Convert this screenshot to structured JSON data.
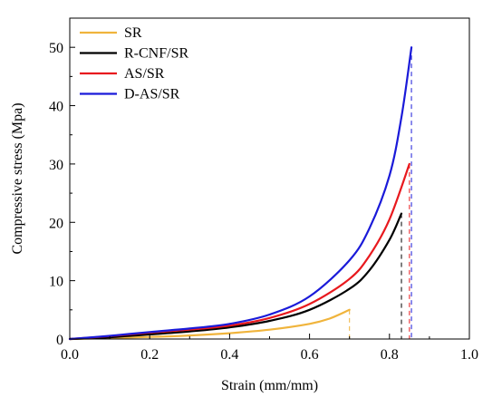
{
  "chart_data": {
    "type": "line",
    "title": "",
    "xlabel": "Strain (mm/mm)",
    "ylabel": "Compressive stress (Mpa)",
    "xlim": [
      0.0,
      1.0
    ],
    "ylim": [
      0,
      55
    ],
    "x_ticks": [
      "0.0",
      "0.2",
      "0.4",
      "0.6",
      "0.8",
      "1.0"
    ],
    "y_ticks": [
      "0",
      "10",
      "20",
      "30",
      "40",
      "50"
    ],
    "grid": false,
    "legend_position": "top-left",
    "series": [
      {
        "name": "SR",
        "color": "#f0b43c",
        "fracture_dashed_line": true,
        "points": [
          [
            0.0,
            0.0
          ],
          [
            0.1,
            0.15
          ],
          [
            0.2,
            0.35
          ],
          [
            0.3,
            0.6
          ],
          [
            0.4,
            1.0
          ],
          [
            0.5,
            1.6
          ],
          [
            0.6,
            2.6
          ],
          [
            0.65,
            3.5
          ],
          [
            0.7,
            5.0
          ]
        ]
      },
      {
        "name": "R-CNF/SR",
        "color": "#000000",
        "fracture_dashed_line": true,
        "points": [
          [
            0.0,
            0.0
          ],
          [
            0.1,
            0.3
          ],
          [
            0.2,
            0.8
          ],
          [
            0.3,
            1.3
          ],
          [
            0.4,
            2.0
          ],
          [
            0.5,
            3.1
          ],
          [
            0.6,
            5.0
          ],
          [
            0.7,
            8.6
          ],
          [
            0.75,
            11.8
          ],
          [
            0.8,
            17.0
          ],
          [
            0.83,
            21.5
          ]
        ]
      },
      {
        "name": "AS/SR",
        "color": "#e8191e",
        "fracture_dashed_line": true,
        "points": [
          [
            0.0,
            0.0
          ],
          [
            0.1,
            0.5
          ],
          [
            0.2,
            1.1
          ],
          [
            0.3,
            1.6
          ],
          [
            0.4,
            2.3
          ],
          [
            0.5,
            3.6
          ],
          [
            0.6,
            6.0
          ],
          [
            0.7,
            10.3
          ],
          [
            0.75,
            14.3
          ],
          [
            0.8,
            20.5
          ],
          [
            0.85,
            30.0
          ]
        ]
      },
      {
        "name": "D-AS/SR",
        "color": "#1a1ad9",
        "fracture_dashed_line": true,
        "points": [
          [
            0.0,
            0.0
          ],
          [
            0.1,
            0.55
          ],
          [
            0.2,
            1.2
          ],
          [
            0.3,
            1.8
          ],
          [
            0.4,
            2.6
          ],
          [
            0.5,
            4.2
          ],
          [
            0.6,
            7.3
          ],
          [
            0.7,
            13.5
          ],
          [
            0.75,
            19.0
          ],
          [
            0.8,
            28.0
          ],
          [
            0.83,
            38.0
          ],
          [
            0.855,
            50.0
          ]
        ]
      }
    ]
  }
}
